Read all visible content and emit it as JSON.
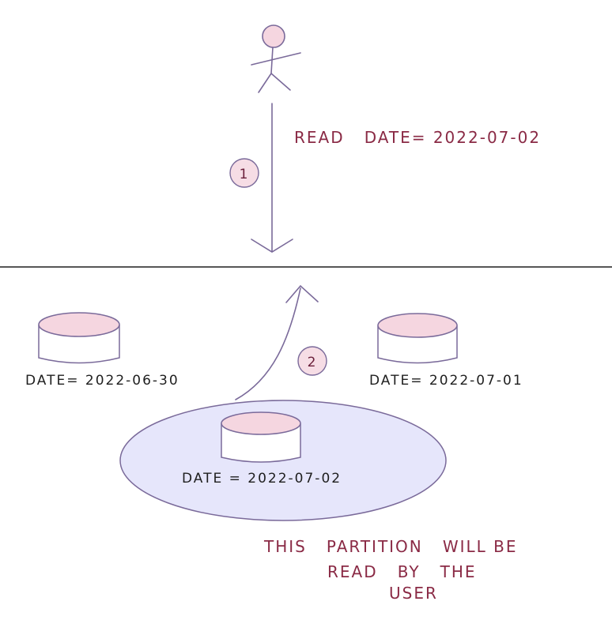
{
  "colors": {
    "ink_dark": "#1e1e1e",
    "ink_purple": "#7a6a9a",
    "ink_red": "#8a2a45",
    "step_fill": "#f6dde5",
    "db_top_fill": "#f5d6e0",
    "ellipse_fill": "#e6e6fb"
  },
  "user": {
    "icon": "stick-figure-user-icon"
  },
  "steps": {
    "step1": "1",
    "step2": "2"
  },
  "query": {
    "text": "READ   DATE= 2022-07-02"
  },
  "partitions": {
    "left": "DATE= 2022-06-30",
    "right": "DATE= 2022-07-01",
    "selected": "DATE = 2022-07-02"
  },
  "note": {
    "line1": "THIS   PARTITION   WILL BE",
    "line2": "READ   BY   THE",
    "line3": "USER"
  }
}
